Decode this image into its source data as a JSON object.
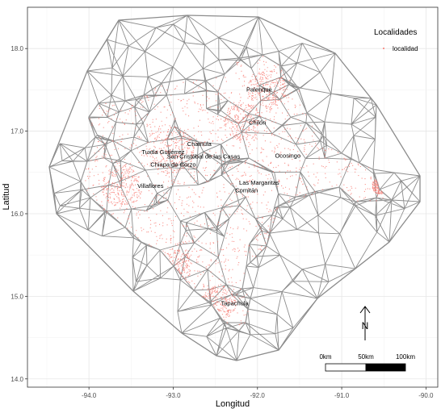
{
  "map": {
    "xlabel": "Longitud",
    "ylabel": "Latitud",
    "x_ticks": [
      -94.0,
      -93.0,
      -92.0,
      -91.0,
      -90.0
    ],
    "x_tick_labels": [
      "-94.0",
      "-93.0",
      "-92.0",
      "-91.0",
      "-90.0"
    ],
    "y_ticks": [
      14.0,
      15.0,
      16.0,
      17.0,
      18.0
    ],
    "y_tick_labels": [
      "14.0",
      "15.0",
      "16.0",
      "17.0",
      "18.0"
    ],
    "xlim": [
      -94.73,
      -89.86
    ],
    "ylim": [
      13.9,
      18.5
    ],
    "legend": {
      "title": "Localidades",
      "item_label": "localidad",
      "position": "top-right"
    },
    "colors": {
      "mesh": "#8c8c8c",
      "points": "#f8766d",
      "grid": "#ebebeb",
      "panel_border": "#333333",
      "text": "#000000"
    },
    "north_arrow": {
      "label": "N"
    },
    "scale_bar": {
      "labels": [
        "0km",
        "50km",
        "100km"
      ]
    },
    "localities": [
      {
        "name": "Palenque",
        "lon": -91.98,
        "lat": 17.51
      },
      {
        "name": "Chilón",
        "lon": -92.0,
        "lat": 17.11
      },
      {
        "name": "Chamula",
        "lon": -92.69,
        "lat": 16.85
      },
      {
        "name": "Ocosingo",
        "lon": -91.64,
        "lat": 16.71
      },
      {
        "name": "Tuxtla Gutiérrez",
        "lon": -93.12,
        "lat": 16.75
      },
      {
        "name": "San Cristóbal de las Casas",
        "lon": -92.64,
        "lat": 16.7
      },
      {
        "name": "Chiapa de Corzo",
        "lon": -93.0,
        "lat": 16.6
      },
      {
        "name": "Las Margaritas",
        "lon": -91.98,
        "lat": 16.38
      },
      {
        "name": "Villaflores",
        "lon": -93.27,
        "lat": 16.34
      },
      {
        "name": "Comitán",
        "lon": -92.13,
        "lat": 16.29
      },
      {
        "name": "Tapachula",
        "lon": -92.27,
        "lat": 14.92
      }
    ]
  }
}
